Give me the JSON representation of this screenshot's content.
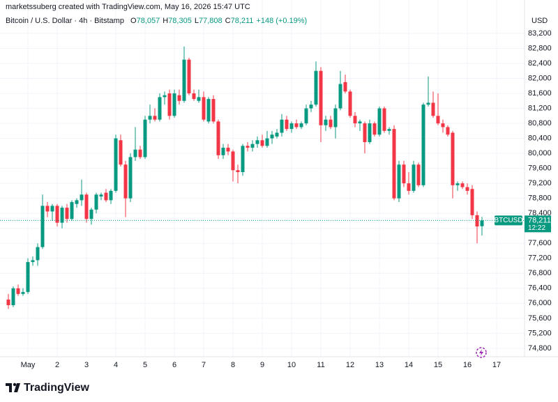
{
  "header": {
    "credit": "marketssuberg created with TradingView.com, May 16, 2026 15:47 UTC",
    "symbol": "Bitcoin / U.S. Dollar · 4h · Bitstamp",
    "ohlc": [
      {
        "key": "O",
        "value": "78,057"
      },
      {
        "key": "H",
        "value": "78,305"
      },
      {
        "key": "L",
        "value": "77,808"
      },
      {
        "key": "C",
        "value": "78,211"
      }
    ],
    "change": "+148 (+0.19%)"
  },
  "chart_data": {
    "type": "candlestick",
    "currency": "USD",
    "ticker": "BTCUSD",
    "countdown": "12:22",
    "last_price": {
      "value": 78211,
      "label": "78,211"
    },
    "up_color": "#089981",
    "down_color": "#f23645",
    "grid": true,
    "ylim": [
      74575,
      83905
    ],
    "yticks": [
      {
        "value": 74800,
        "label": "74,800"
      },
      {
        "value": 75200,
        "label": "75,200"
      },
      {
        "value": 75600,
        "label": "75,600"
      },
      {
        "value": 76000,
        "label": "76,000"
      },
      {
        "value": 76400,
        "label": "76,400"
      },
      {
        "value": 76800,
        "label": "76,800"
      },
      {
        "value": 77200,
        "label": "77,200"
      },
      {
        "value": 77600,
        "label": "77,600"
      },
      {
        "value": 78000,
        "label": "78,000"
      },
      {
        "value": 78400,
        "label": "78,400"
      },
      {
        "value": 78800,
        "label": "78,800"
      },
      {
        "value": 79200,
        "label": "79,200"
      },
      {
        "value": 79600,
        "label": "79,600"
      },
      {
        "value": 80000,
        "label": "80,000"
      },
      {
        "value": 80400,
        "label": "80,400"
      },
      {
        "value": 80800,
        "label": "80,800"
      },
      {
        "value": 81200,
        "label": "81,200"
      },
      {
        "value": 81600,
        "label": "81,600"
      },
      {
        "value": 82000,
        "label": "82,000"
      },
      {
        "value": 82400,
        "label": "82,400"
      },
      {
        "value": 82800,
        "label": "82,800"
      },
      {
        "value": 83200,
        "label": "83,200"
      }
    ],
    "categories": [
      null,
      null,
      null,
      null,
      "May",
      null,
      null,
      null,
      null,
      null,
      "2",
      null,
      null,
      null,
      null,
      null,
      "3",
      null,
      null,
      null,
      null,
      null,
      "4",
      null,
      null,
      null,
      null,
      null,
      "5",
      null,
      null,
      null,
      null,
      null,
      "6",
      null,
      null,
      null,
      null,
      null,
      "7",
      null,
      null,
      null,
      null,
      null,
      "8",
      null,
      null,
      null,
      null,
      null,
      "9",
      null,
      null,
      null,
      null,
      null,
      "10",
      null,
      null,
      null,
      null,
      null,
      "11",
      null,
      null,
      null,
      null,
      null,
      "12",
      null,
      null,
      null,
      null,
      null,
      "13",
      null,
      null,
      null,
      null,
      null,
      "14",
      null,
      null,
      null,
      null,
      null,
      "15",
      null,
      null,
      null,
      null,
      null,
      "16",
      null,
      null,
      null,
      null,
      null,
      "17"
    ],
    "open": [
      76100,
      75950,
      76400,
      76250,
      76300,
      77100,
      77150,
      77500,
      78600,
      78450,
      78600,
      78150,
      78550,
      78250,
      78650,
      78750,
      78900,
      78250,
      78500,
      78850,
      78950,
      78750,
      79000,
      80350,
      79700,
      78800,
      79900,
      80100,
      79900,
      80900,
      81000,
      80900,
      81500,
      81600,
      81000,
      81550,
      81400,
      82500,
      81600,
      81400,
      81500,
      80850,
      81450,
      80850,
      79950,
      80150,
      80050,
      79550,
      79500,
      80200,
      80150,
      80250,
      80350,
      80200,
      80400,
      80450,
      80550,
      80900,
      80650,
      80800,
      80700,
      80800,
      81200,
      81300,
      82200,
      80750,
      80900,
      80700,
      81200,
      81900,
      81650,
      81000,
      80800,
      80800,
      80300,
      80800,
      80500,
      81200,
      80600,
      80650,
      78800,
      79700,
      79200,
      79000,
      79700,
      79150,
      81300,
      81350,
      81000,
      80800,
      80700,
      80550,
      79150,
      79200,
      79100,
      79050,
      78350,
      78057,
      null,
      null,
      null
    ],
    "high": [
      76250,
      76450,
      76500,
      76400,
      77200,
      77250,
      77600,
      78900,
      78700,
      78650,
      78650,
      78600,
      78650,
      78750,
      78800,
      79300,
      78950,
      78550,
      78950,
      78950,
      79050,
      79050,
      80500,
      80500,
      79800,
      80000,
      80700,
      80200,
      81000,
      81300,
      81200,
      81600,
      81650,
      81700,
      81700,
      81700,
      82850,
      82550,
      81700,
      81700,
      81650,
      81500,
      81550,
      80900,
      80250,
      80250,
      80100,
      79700,
      80250,
      80300,
      80350,
      80450,
      80500,
      80600,
      80600,
      80650,
      81050,
      81000,
      80850,
      80900,
      80850,
      81300,
      81400,
      82450,
      82300,
      81000,
      81000,
      81300,
      82200,
      82100,
      81700,
      81100,
      80900,
      80850,
      80900,
      80850,
      81250,
      81250,
      80700,
      80750,
      79800,
      79800,
      79500,
      79800,
      79750,
      81350,
      82050,
      81650,
      81600,
      80900,
      80750,
      80600,
      79250,
      79250,
      79200,
      79150,
      78450,
      78305,
      null,
      null,
      null
    ],
    "low": [
      75850,
      75900,
      76200,
      76200,
      76250,
      77000,
      77000,
      77450,
      78300,
      78200,
      78050,
      78000,
      78150,
      78200,
      78550,
      78600,
      78150,
      78100,
      78400,
      78750,
      78700,
      78650,
      78950,
      79650,
      78300,
      78700,
      79800,
      79850,
      79850,
      80800,
      80850,
      80850,
      81300,
      80900,
      80950,
      81300,
      81350,
      81550,
      81400,
      81350,
      80850,
      80800,
      80800,
      79850,
      79850,
      79950,
      79250,
      79200,
      79400,
      80050,
      80050,
      80150,
      80150,
      80150,
      80250,
      80400,
      80450,
      80600,
      80550,
      80650,
      80650,
      80750,
      81100,
      81250,
      80300,
      80600,
      80650,
      80400,
      81150,
      81600,
      80950,
      80700,
      80600,
      80000,
      80250,
      80450,
      80450,
      80550,
      80500,
      78750,
      78700,
      79100,
      78900,
      78950,
      79100,
      79100,
      81250,
      80950,
      80750,
      80550,
      80450,
      78800,
      79000,
      79050,
      78900,
      78250,
      77600,
      77808,
      null,
      null,
      null
    ],
    "close": [
      75950,
      76400,
      76250,
      76300,
      77100,
      77150,
      77500,
      78600,
      78450,
      78600,
      78150,
      78550,
      78250,
      78700,
      78750,
      78900,
      78250,
      78500,
      78900,
      78900,
      78750,
      79000,
      80400,
      79700,
      78800,
      79900,
      80100,
      79900,
      80900,
      81000,
      80900,
      81500,
      81550,
      81000,
      81600,
      81400,
      82500,
      81600,
      81450,
      81500,
      80900,
      81450,
      80850,
      79950,
      80150,
      80050,
      79550,
      79500,
      80200,
      80150,
      80250,
      80350,
      80200,
      80400,
      80500,
      80550,
      80900,
      80650,
      80800,
      80700,
      80800,
      81200,
      81300,
      82200,
      80750,
      80900,
      80700,
      81200,
      81850,
      81650,
      81000,
      80800,
      80850,
      80300,
      80800,
      80500,
      81200,
      80600,
      80650,
      78800,
      79700,
      79200,
      79000,
      79700,
      79150,
      81300,
      81350,
      81000,
      80800,
      80700,
      80500,
      79150,
      79200,
      79100,
      79000,
      78350,
      78050,
      78211,
      null,
      null,
      null
    ]
  },
  "footer": {
    "brand": "TradingView"
  }
}
